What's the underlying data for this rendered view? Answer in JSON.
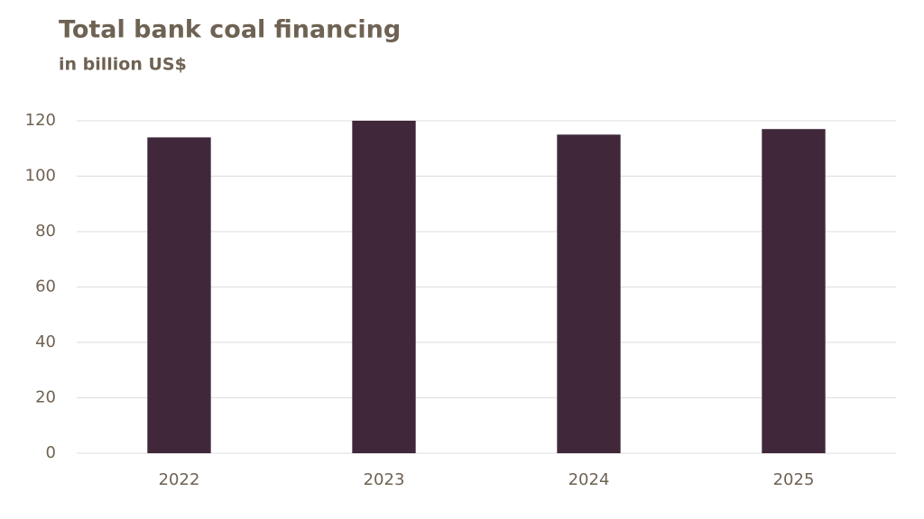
{
  "chart_data": {
    "type": "bar",
    "title": "Total bank coal financing",
    "subtitle": "in billion US$",
    "categories": [
      "2022",
      "2023",
      "2024",
      "2025"
    ],
    "values": [
      114,
      120,
      115,
      117
    ],
    "color": "#40283a",
    "ylim": [
      0,
      120
    ],
    "yticks": [
      0,
      20,
      40,
      60,
      80,
      100,
      120
    ],
    "grid": true
  }
}
